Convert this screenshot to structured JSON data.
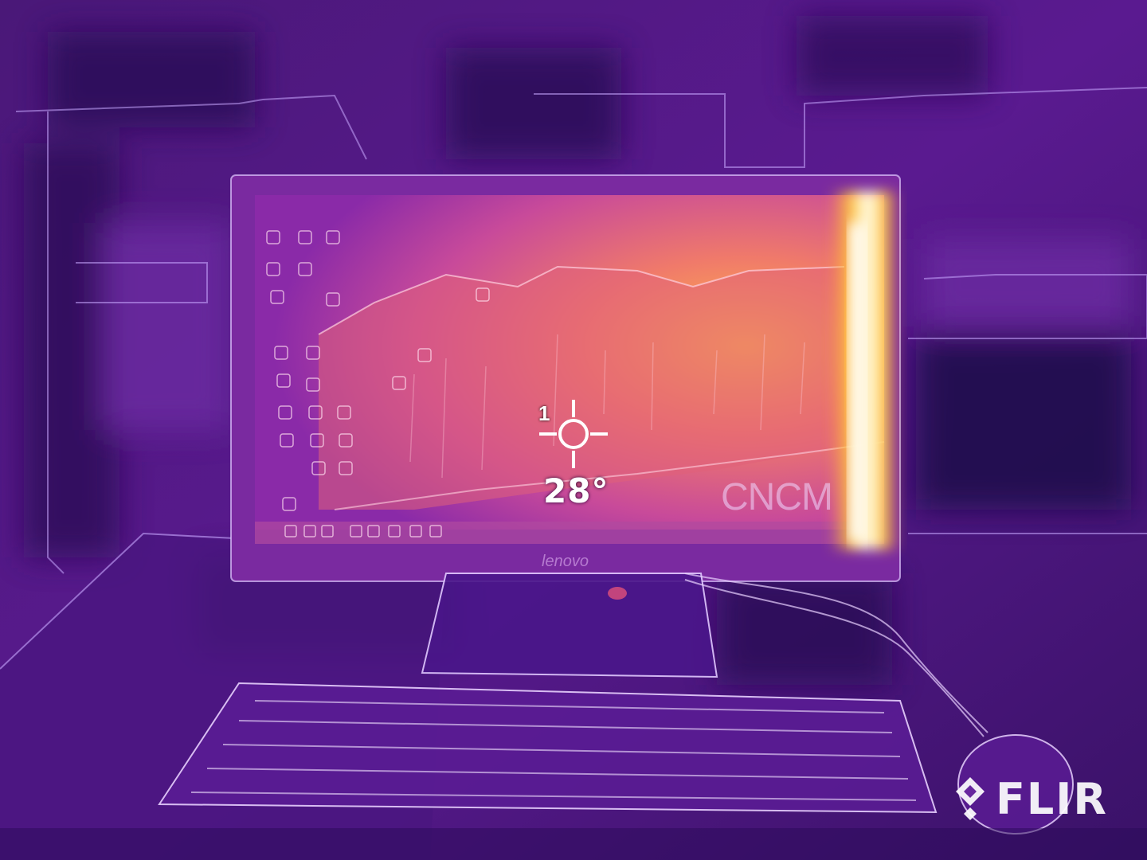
{
  "image": {
    "description_type": "thermal-camera-photo",
    "palette": [
      "#2a0a50",
      "#5a1a8a",
      "#9a2aa8",
      "#d8509a",
      "#f08a5a",
      "#ffd23a",
      "#ffffff"
    ]
  },
  "overlay": {
    "spot_index": "1",
    "temperature": "28°",
    "watermark": "FLIR",
    "watermark_icon": "flir-logo-icon"
  },
  "scene_text": {
    "monitor_brand": "lenovo",
    "wallpaper_text": "CNCM"
  }
}
